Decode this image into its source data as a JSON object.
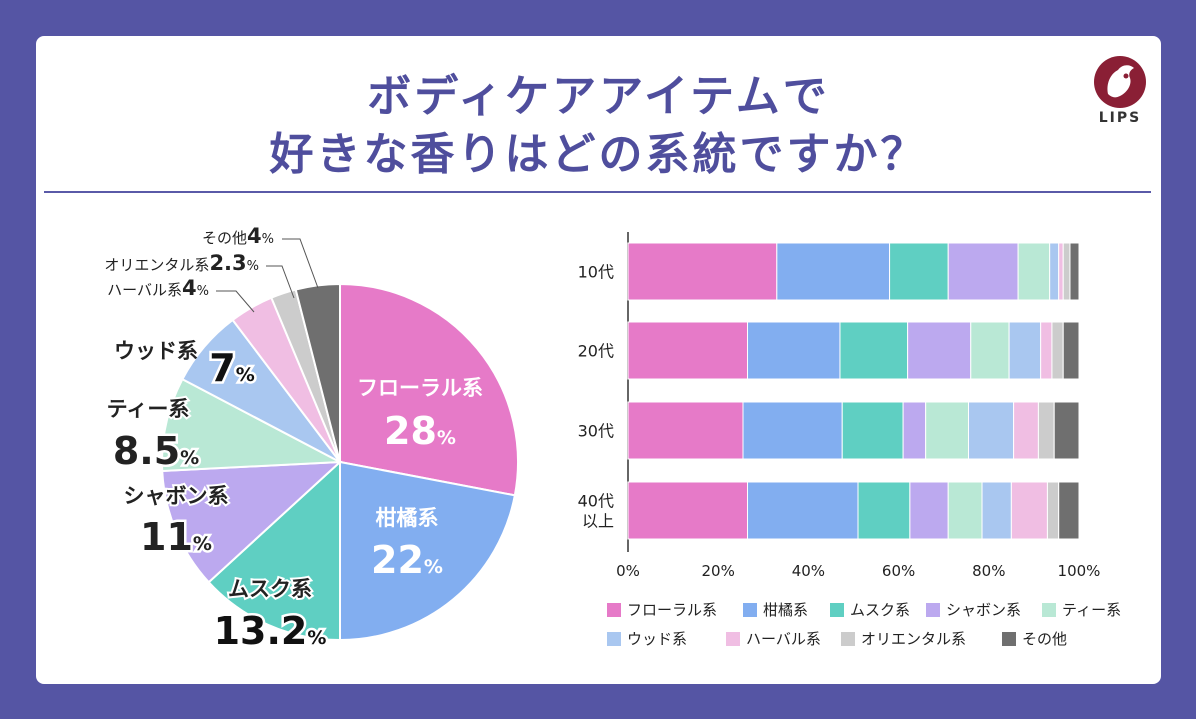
{
  "title_line1": "ボディケアアイテムで",
  "title_line2": "好きな香りはどの系統ですか？",
  "logo_text": "LIPS",
  "colors": {
    "background": "#5555a4",
    "title": "#4f4e9d",
    "floral": "#e67ac8",
    "citrus": "#82aef0",
    "musk": "#5fcfc2",
    "savon": "#bca9ef",
    "tea": "#b9e8d5",
    "wood": "#a9c7f0",
    "herbal": "#f0bee3",
    "oriental": "#cccccc",
    "other": "#6f6f6f"
  },
  "chart_data": [
    {
      "type": "pie",
      "title": "",
      "categories": [
        "フローラル系",
        "柑橘系",
        "ムスク系",
        "シャボン系",
        "ティー系",
        "ウッド系",
        "ハーバル系",
        "オリエンタル系",
        "その他"
      ],
      "values": [
        28,
        22,
        13.2,
        11,
        8.5,
        7,
        4,
        2.3,
        4
      ],
      "value_labels": [
        "28",
        "22",
        "13.2",
        "11",
        "8.5",
        "7",
        "4",
        "2.3",
        "4"
      ],
      "unit": "%"
    },
    {
      "type": "bar",
      "orientation": "horizontal-stacked",
      "categories": [
        "10代",
        "20代",
        "30代",
        "40代\n以上"
      ],
      "series": [
        {
          "name": "フローラル系",
          "values": [
            33,
            26.5,
            25.5,
            26.5
          ]
        },
        {
          "name": "柑橘系",
          "values": [
            25,
            20.5,
            22,
            24.5
          ]
        },
        {
          "name": "ムスク系",
          "values": [
            13,
            15,
            13.5,
            11.5
          ]
        },
        {
          "name": "シャボン系",
          "values": [
            15.5,
            14,
            5,
            8.5
          ]
        },
        {
          "name": "ティー系",
          "values": [
            7,
            8.5,
            9.5,
            7.5
          ]
        },
        {
          "name": "ウッド系",
          "values": [
            2,
            7,
            10,
            6.5
          ]
        },
        {
          "name": "ハーバル系",
          "values": [
            1,
            2.5,
            5.5,
            8
          ]
        },
        {
          "name": "オリエンタル系",
          "values": [
            1.5,
            2.5,
            3.5,
            2.5
          ]
        },
        {
          "name": "その他",
          "values": [
            2,
            3.5,
            5.5,
            4.5
          ]
        }
      ],
      "xlim": [
        0,
        100
      ],
      "xticks": [
        "0%",
        "20%",
        "40%",
        "60%",
        "80%",
        "100%"
      ],
      "legend_position": "bottom"
    }
  ]
}
